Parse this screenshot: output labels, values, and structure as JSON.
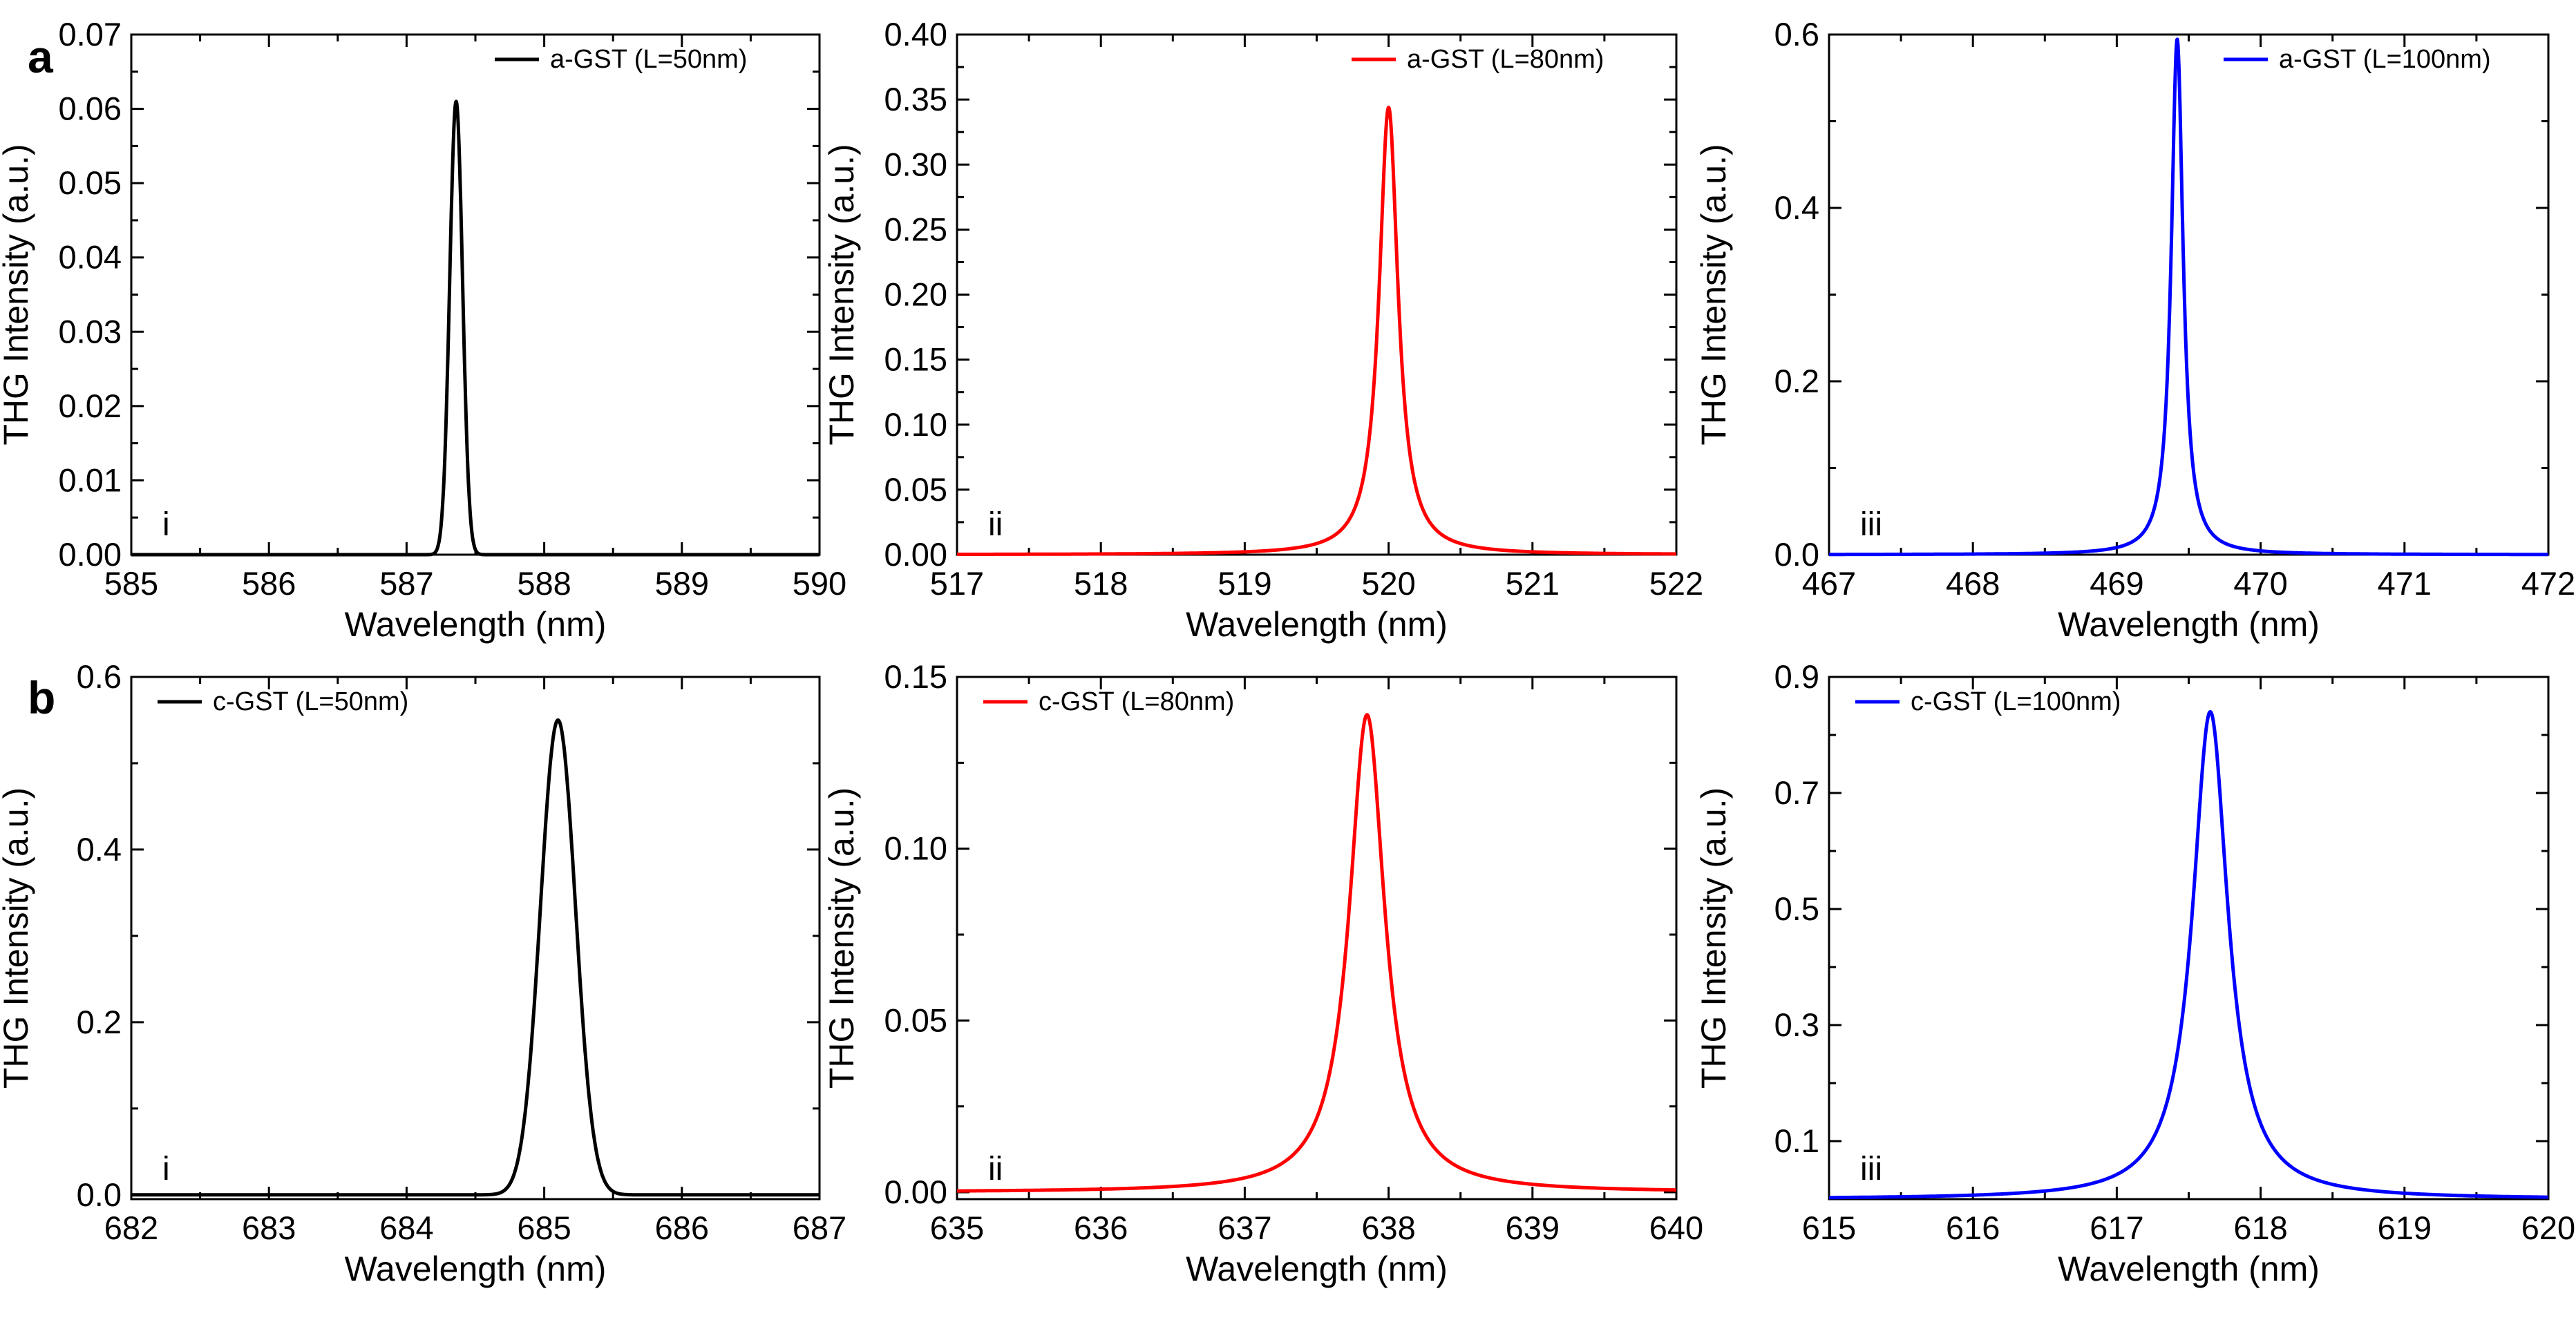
{
  "row_labels": [
    "a",
    "b"
  ],
  "chart_data": [
    {
      "type": "line",
      "row": 0,
      "col": 0,
      "panel_label": "i",
      "xlabel": "Wavelength (nm)",
      "ylabel": "THG Intensity (a.u.)",
      "xlim": [
        585,
        590
      ],
      "ylim": [
        0,
        0.07
      ],
      "xticks": [
        585,
        586,
        587,
        588,
        589,
        590
      ],
      "yticks": [
        0.0,
        0.01,
        0.02,
        0.03,
        0.04,
        0.05,
        0.06,
        0.07
      ],
      "ytick_labels": [
        "0.00",
        "0.01",
        "0.02",
        "0.03",
        "0.04",
        "0.05",
        "0.06",
        "0.07"
      ],
      "legend_position": "top-right",
      "series": [
        {
          "name": "a-GST (L=50nm)",
          "color": "#000000",
          "peak_x": 587.36,
          "peak_y": 0.061,
          "fwhm": 0.11,
          "shape": "gaussian"
        }
      ]
    },
    {
      "type": "line",
      "row": 0,
      "col": 1,
      "panel_label": "ii",
      "xlabel": "Wavelength (nm)",
      "ylabel": "THG Intensity (a.u.)",
      "xlim": [
        517,
        522
      ],
      "ylim": [
        0,
        0.4
      ],
      "xticks": [
        517,
        518,
        519,
        520,
        521,
        522
      ],
      "yticks": [
        0.0,
        0.05,
        0.1,
        0.15,
        0.2,
        0.25,
        0.3,
        0.35,
        0.4
      ],
      "ytick_labels": [
        "0.00",
        "0.05",
        "0.10",
        "0.15",
        "0.20",
        "0.25",
        "0.30",
        "0.35",
        "0.40"
      ],
      "legend_position": "top-right",
      "series": [
        {
          "name": "a-GST (L=80nm)",
          "color": "#ff0000",
          "peak_x": 520.0,
          "peak_y": 0.344,
          "fwhm": 0.16,
          "shape": "lorentzian"
        }
      ]
    },
    {
      "type": "line",
      "row": 0,
      "col": 2,
      "panel_label": "iii",
      "xlabel": "Wavelength (nm)",
      "ylabel": "THG Intensity (a.u.)",
      "xlim": [
        467,
        472
      ],
      "ylim": [
        0,
        0.6
      ],
      "xticks": [
        467,
        468,
        469,
        470,
        471,
        472
      ],
      "yticks": [
        0.0,
        0.2,
        0.4,
        0.6
      ],
      "ytick_labels": [
        "0.0",
        "0.2",
        "0.4",
        "0.6"
      ],
      "legend_position": "top-right",
      "series": [
        {
          "name": "a-GST (L=100nm)",
          "color": "#0000ff",
          "peak_x": 469.42,
          "peak_y": 0.595,
          "fwhm": 0.1,
          "shape": "lorentzian"
        }
      ]
    },
    {
      "type": "line",
      "row": 1,
      "col": 0,
      "panel_label": "i",
      "xlabel": "Wavelength (nm)",
      "ylabel": "THG Intensity (a.u.)",
      "xlim": [
        682,
        687
      ],
      "ylim": [
        -0.005,
        0.6
      ],
      "xticks": [
        682,
        683,
        684,
        685,
        686,
        687
      ],
      "yticks": [
        0.0,
        0.2,
        0.4,
        0.6
      ],
      "ytick_labels": [
        "0.0",
        "0.2",
        "0.4",
        "0.6"
      ],
      "legend_position": "top-left",
      "series": [
        {
          "name": "c-GST (L=50nm)",
          "color": "#000000",
          "peak_x": 685.1,
          "peak_y": 0.55,
          "fwhm": 0.3,
          "shape": "gaussian"
        }
      ]
    },
    {
      "type": "line",
      "row": 1,
      "col": 1,
      "panel_label": "ii",
      "xlabel": "Wavelength (nm)",
      "ylabel": "THG Intensity (a.u.)",
      "xlim": [
        635,
        640
      ],
      "ylim": [
        -0.002,
        0.15
      ],
      "xticks": [
        635,
        636,
        637,
        638,
        639,
        640
      ],
      "yticks": [
        0.0,
        0.05,
        0.1,
        0.15
      ],
      "ytick_labels": [
        "0.00",
        "0.05",
        "0.10",
        "0.15"
      ],
      "legend_position": "top-left",
      "series": [
        {
          "name": "c-GST (L=80nm)",
          "color": "#ff0000",
          "peak_x": 637.85,
          "peak_y": 0.139,
          "fwhm": 0.3,
          "shape": "lorentzian"
        }
      ]
    },
    {
      "type": "line",
      "row": 1,
      "col": 2,
      "panel_label": "iii",
      "xlabel": "Wavelength (nm)",
      "ylabel": "THG Intensity (a.u.)",
      "xlim": [
        615,
        620
      ],
      "ylim": [
        0,
        0.9
      ],
      "xticks": [
        615,
        616,
        617,
        618,
        619,
        620
      ],
      "yticks": [
        0.1,
        0.3,
        0.5,
        0.7,
        0.9
      ],
      "ytick_labels": [
        "0.1",
        "0.3",
        "0.5",
        "0.7",
        "0.9"
      ],
      "legend_position": "top-left",
      "series": [
        {
          "name": "c-GST (L=100nm)",
          "color": "#0000ff",
          "peak_x": 617.65,
          "peak_y": 0.84,
          "fwhm": 0.3,
          "shape": "lorentzian"
        }
      ]
    }
  ]
}
